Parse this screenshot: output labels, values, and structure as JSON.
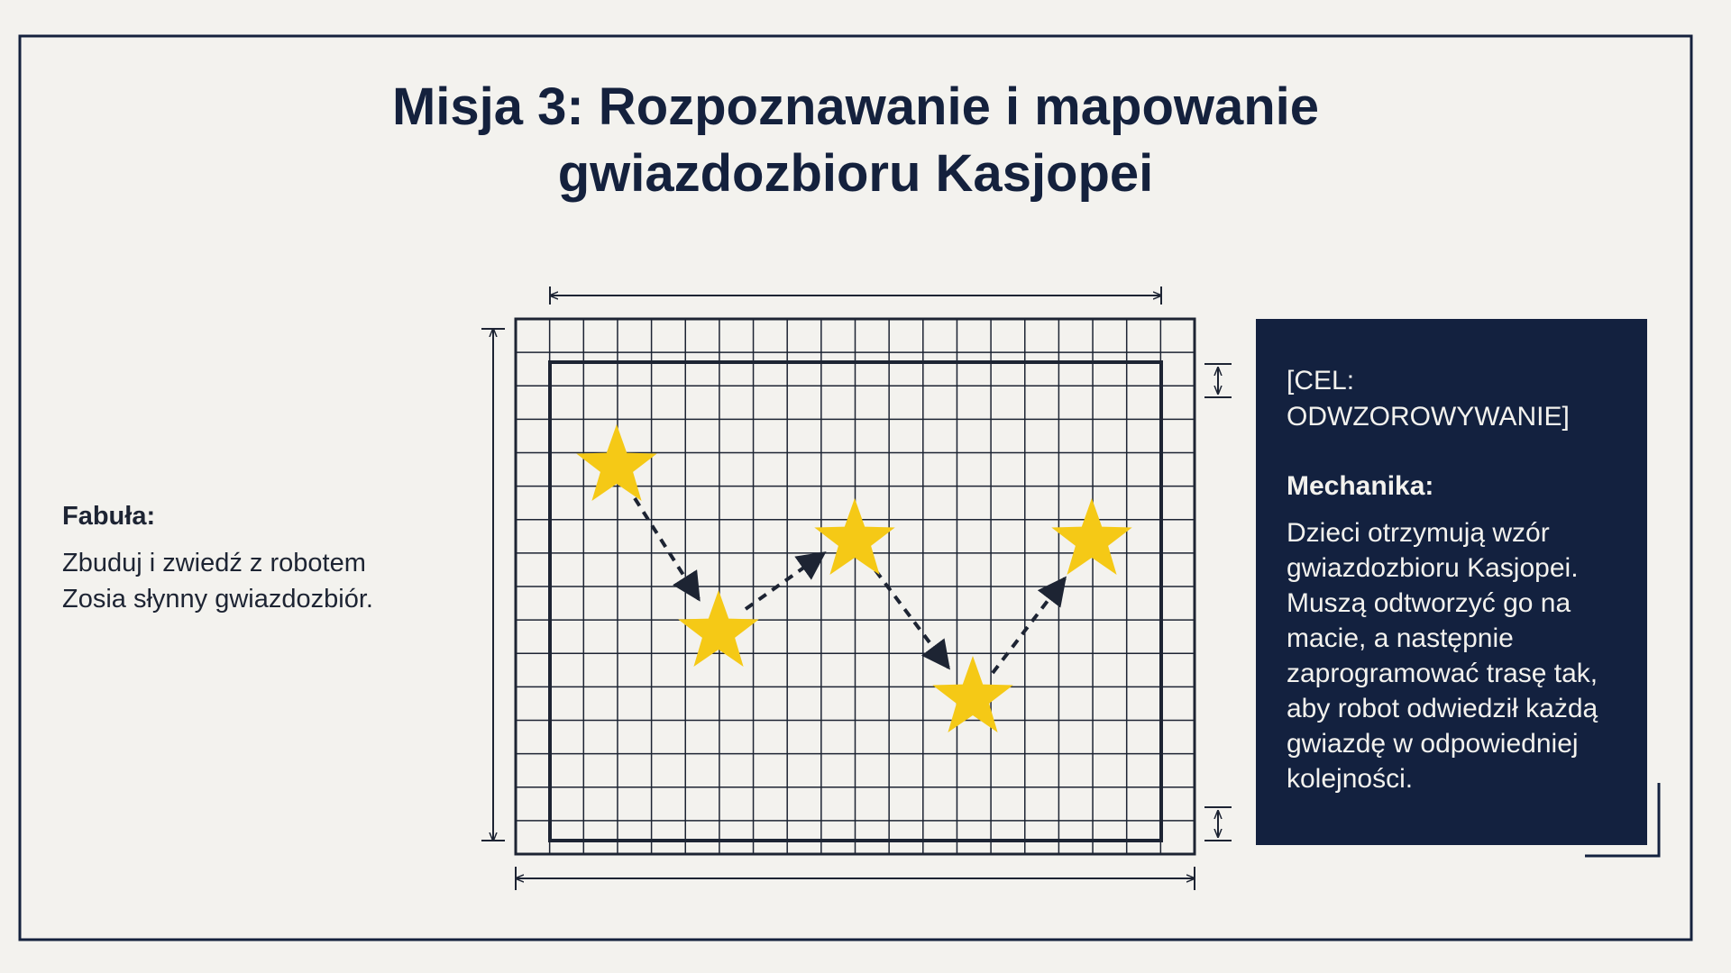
{
  "header": {
    "title_lines": [
      "Misja 3: Rozpoznawanie i mapowanie",
      "gwiazdozbioru Kasjopei"
    ]
  },
  "story": {
    "heading": "Fabuła:",
    "lines": [
      "Zbuduj i zwiedź z robotem",
      "Zosia słynny gwiazdozbiór."
    ]
  },
  "panel": {
    "goal_lines": [
      "[CEL:",
      "ODWZOROWYWANIE]"
    ],
    "heading": "Mechanika:",
    "lines": [
      "Dzieci otrzymują wzór",
      "gwiazdozbioru Kasjopei.",
      "Muszą odtworzyć go na",
      "macie, a następnie",
      "zaprogramować trasę tak,",
      "aby robot odwiedził każdą",
      "gwiazdę w odpowiedniej",
      "kolejności."
    ]
  }
}
